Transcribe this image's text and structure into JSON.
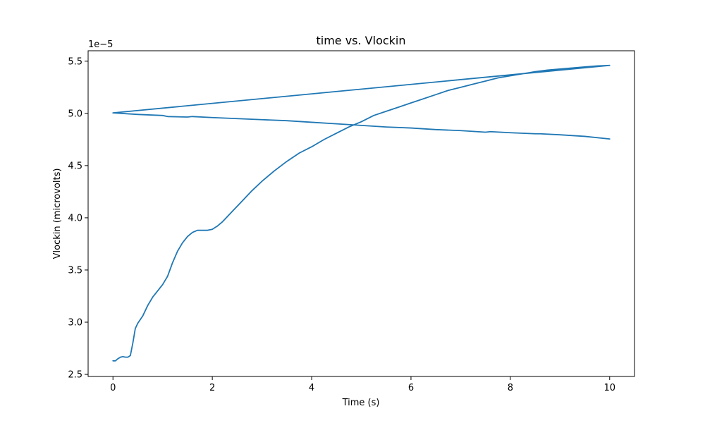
{
  "chart_data": {
    "type": "line",
    "title": "time vs. Vlockin",
    "xlabel": "Time (s)",
    "ylabel": "Vlockin (microvolts)",
    "offset_label": "1e−5",
    "xlim": [
      -0.5,
      10.5
    ],
    "ylim": [
      2.48,
      5.6
    ],
    "x_ticks": [
      0,
      2,
      4,
      6,
      8,
      10
    ],
    "x_tick_labels": [
      "0",
      "2",
      "4",
      "6",
      "8",
      "10"
    ],
    "y_ticks": [
      2.5,
      3.0,
      3.5,
      4.0,
      4.5,
      5.0,
      5.5
    ],
    "y_tick_labels": [
      "2.5",
      "3.0",
      "3.5",
      "4.0",
      "4.5",
      "5.0",
      "5.5"
    ],
    "grid": false,
    "colors": {
      "line": "#1f77b4"
    },
    "series": [
      {
        "x": [
          0.0,
          0.05,
          0.1,
          0.15,
          0.2,
          0.25,
          0.3,
          0.35,
          0.4,
          0.45,
          0.5,
          0.6,
          0.7,
          0.8,
          0.9,
          1.0,
          1.1,
          1.2,
          1.3,
          1.4,
          1.5,
          1.6,
          1.7,
          1.8,
          1.9,
          2.0,
          2.1,
          2.2,
          2.4,
          2.6,
          2.8,
          3.0,
          3.25,
          3.5,
          3.75,
          4.0,
          4.25,
          4.5,
          4.75,
          5.0,
          5.25,
          5.5,
          5.75,
          6.0,
          6.25,
          6.5,
          6.75,
          7.0,
          7.25,
          7.5,
          7.75,
          8.0,
          8.25,
          8.5,
          8.75,
          9.0,
          9.25,
          9.5,
          9.75,
          10.0,
          0.0,
          0.5,
          1.0,
          1.1,
          1.5,
          1.6,
          2.0,
          2.5,
          3.0,
          3.5,
          4.0,
          4.5,
          5.0,
          5.5,
          6.0,
          6.5,
          7.0,
          7.5,
          7.6,
          8.0,
          8.5,
          8.6,
          9.0,
          9.5,
          10.0
        ],
        "y": [
          2.63,
          2.63,
          2.65,
          2.665,
          2.67,
          2.665,
          2.665,
          2.68,
          2.8,
          2.94,
          2.99,
          3.06,
          3.16,
          3.24,
          3.3,
          3.36,
          3.44,
          3.57,
          3.68,
          3.76,
          3.82,
          3.86,
          3.88,
          3.88,
          3.88,
          3.89,
          3.92,
          3.96,
          4.06,
          4.16,
          4.26,
          4.35,
          4.45,
          4.54,
          4.62,
          4.68,
          4.75,
          4.81,
          4.87,
          4.92,
          4.98,
          5.02,
          5.06,
          5.1,
          5.14,
          5.18,
          5.22,
          5.25,
          5.28,
          5.31,
          5.34,
          5.36,
          5.38,
          5.4,
          5.415,
          5.425,
          5.435,
          5.445,
          5.455,
          5.46,
          5.005,
          4.99,
          4.98,
          4.97,
          4.965,
          4.97,
          4.96,
          4.95,
          4.94,
          4.93,
          4.915,
          4.9,
          4.885,
          4.87,
          4.86,
          4.845,
          4.835,
          4.82,
          4.825,
          4.815,
          4.805,
          4.805,
          4.795,
          4.78,
          4.755
        ]
      }
    ]
  }
}
